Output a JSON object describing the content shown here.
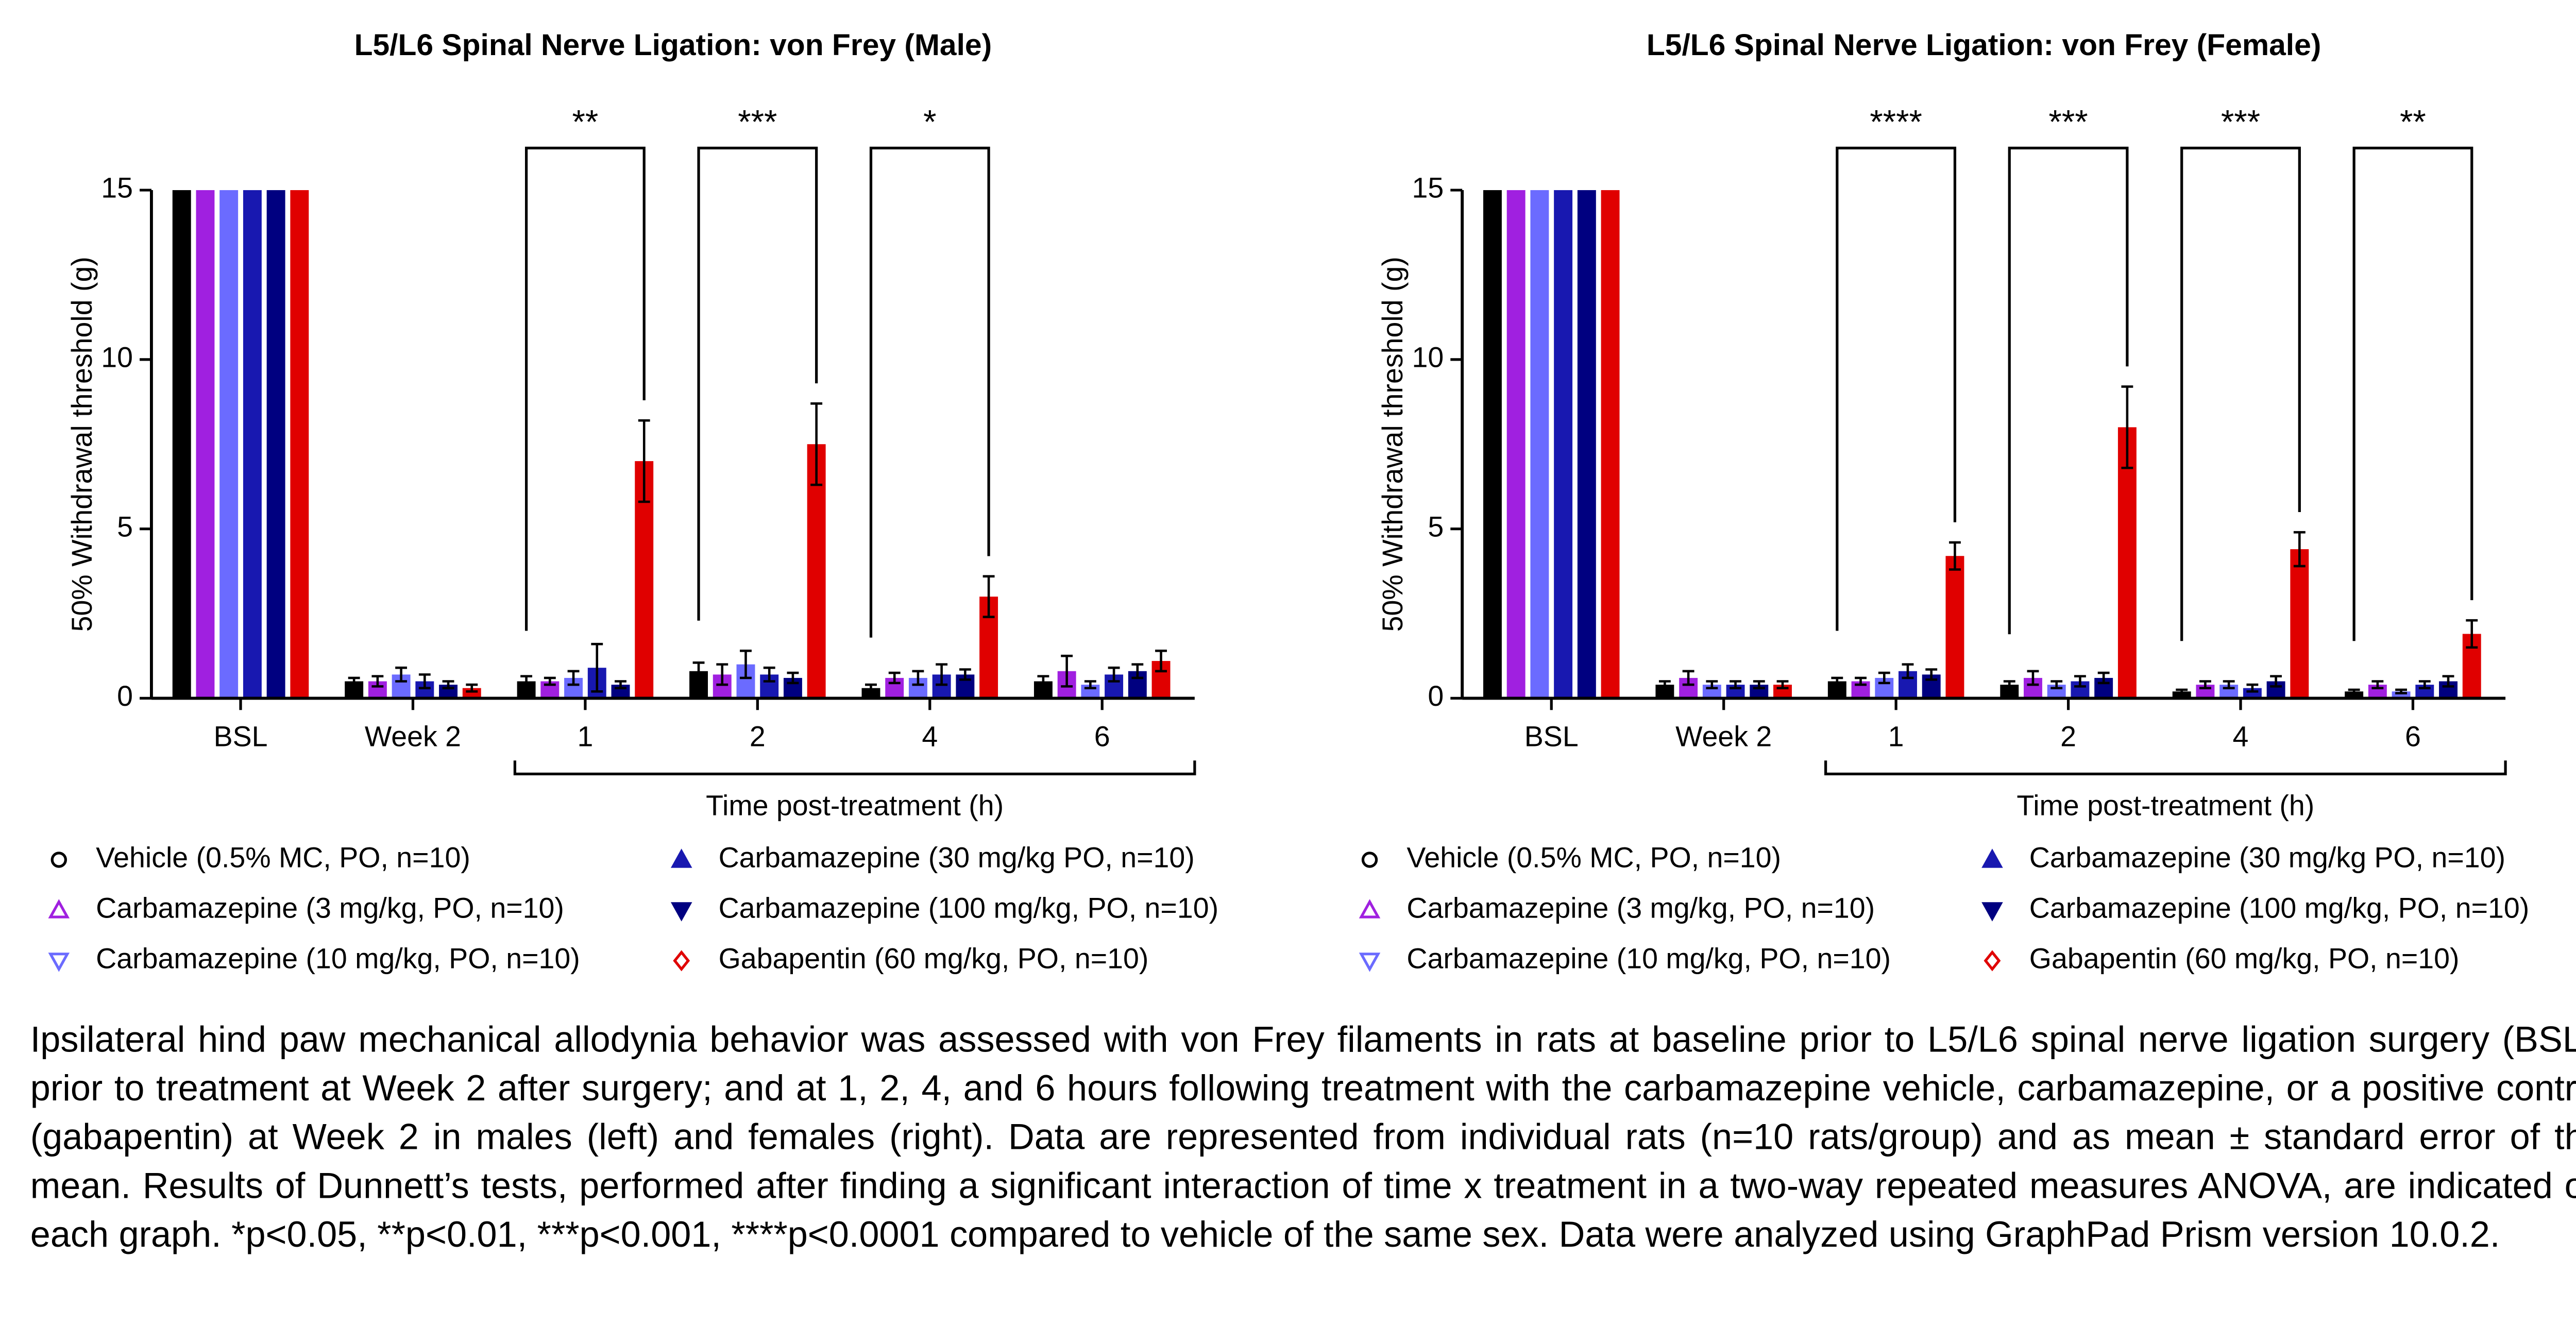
{
  "chart_data": [
    {
      "type": "bar",
      "title": "L5/L6 Spinal Nerve Ligation: von Frey (Male)",
      "y_label": "50% Withdrawal threshold (g)",
      "x_group_label": "Time post-treatment (h)",
      "categories": [
        "BSL",
        "Week 2",
        "1",
        "2",
        "4",
        "6"
      ],
      "ylim": [
        0,
        15
      ],
      "yticks": [
        0,
        5,
        10,
        15
      ],
      "significance": [
        null,
        null,
        "**",
        "***",
        "*",
        null
      ],
      "series": [
        {
          "name": "Vehicle (0.5% MC, PO, n=10)",
          "color": "#000000",
          "marker": "circle",
          "filled": false,
          "values": [
            15,
            0.5,
            0.5,
            0.8,
            0.3,
            0.5
          ],
          "errors": [
            0,
            0.1,
            0.15,
            0.25,
            0.1,
            0.15
          ]
        },
        {
          "name": "Carbamazepine (3 mg/kg, PO, n=10)",
          "color": "#a020e0",
          "marker": "triangle-up",
          "filled": false,
          "values": [
            15,
            0.5,
            0.5,
            0.7,
            0.6,
            0.8
          ],
          "errors": [
            0,
            0.15,
            0.1,
            0.3,
            0.15,
            0.45
          ]
        },
        {
          "name": "Carbamazepine (10 mg/kg, PO, n=10)",
          "color": "#6b6bff",
          "marker": "triangle-down",
          "filled": false,
          "values": [
            15,
            0.7,
            0.6,
            1.0,
            0.6,
            0.4
          ],
          "errors": [
            0,
            0.2,
            0.2,
            0.4,
            0.2,
            0.1
          ]
        },
        {
          "name": "Carbamazepine (30 mg/kg PO, n=10)",
          "color": "#1818b0",
          "marker": "triangle-up",
          "filled": true,
          "values": [
            15,
            0.5,
            0.9,
            0.7,
            0.7,
            0.7
          ],
          "errors": [
            0,
            0.2,
            0.7,
            0.2,
            0.3,
            0.2
          ]
        },
        {
          "name": "Carbamazepine (100 mg/kg, PO, n=10)",
          "color": "#000080",
          "marker": "triangle-down",
          "filled": true,
          "values": [
            15,
            0.4,
            0.4,
            0.6,
            0.7,
            0.8
          ],
          "errors": [
            0,
            0.1,
            0.1,
            0.15,
            0.15,
            0.2
          ]
        },
        {
          "name": "Gabapentin (60 mg/kg, PO, n=10)",
          "color": "#e00000",
          "marker": "diamond",
          "filled": false,
          "values": [
            15,
            0.3,
            7.0,
            7.5,
            3.0,
            1.1
          ],
          "errors": [
            0,
            0.1,
            1.2,
            1.2,
            0.6,
            0.3
          ]
        }
      ]
    },
    {
      "type": "bar",
      "title": "L5/L6 Spinal Nerve Ligation: von Frey (Female)",
      "y_label": "50% Withdrawal threshold (g)",
      "x_group_label": "Time post-treatment (h)",
      "categories": [
        "BSL",
        "Week 2",
        "1",
        "2",
        "4",
        "6"
      ],
      "ylim": [
        0,
        15
      ],
      "yticks": [
        0,
        5,
        10,
        15
      ],
      "significance": [
        null,
        null,
        "****",
        "***",
        "***",
        "**"
      ],
      "series": [
        {
          "name": "Vehicle (0.5% MC, PO, n=10)",
          "color": "#000000",
          "marker": "circle",
          "filled": false,
          "values": [
            15,
            0.4,
            0.5,
            0.4,
            0.2,
            0.2
          ],
          "errors": [
            0,
            0.1,
            0.1,
            0.1,
            0.05,
            0.05
          ]
        },
        {
          "name": "Carbamazepine (3 mg/kg, PO, n=10)",
          "color": "#a020e0",
          "marker": "triangle-up",
          "filled": false,
          "values": [
            15,
            0.6,
            0.5,
            0.6,
            0.4,
            0.4
          ],
          "errors": [
            0,
            0.2,
            0.1,
            0.2,
            0.1,
            0.1
          ]
        },
        {
          "name": "Carbamazepine (10 mg/kg, PO, n=10)",
          "color": "#6b6bff",
          "marker": "triangle-down",
          "filled": false,
          "values": [
            15,
            0.4,
            0.6,
            0.4,
            0.4,
            0.2
          ],
          "errors": [
            0,
            0.1,
            0.15,
            0.1,
            0.1,
            0.05
          ]
        },
        {
          "name": "Carbamazepine (30 mg/kg PO, n=10)",
          "color": "#1818b0",
          "marker": "triangle-up",
          "filled": true,
          "values": [
            15,
            0.4,
            0.8,
            0.5,
            0.3,
            0.4
          ],
          "errors": [
            0,
            0.1,
            0.2,
            0.15,
            0.1,
            0.1
          ]
        },
        {
          "name": "Carbamazepine (100 mg/kg, PO, n=10)",
          "color": "#000080",
          "marker": "triangle-down",
          "filled": true,
          "values": [
            15,
            0.4,
            0.7,
            0.6,
            0.5,
            0.5
          ],
          "errors": [
            0,
            0.1,
            0.15,
            0.15,
            0.15,
            0.15
          ]
        },
        {
          "name": "Gabapentin (60 mg/kg, PO, n=10)",
          "color": "#e00000",
          "marker": "diamond",
          "filled": false,
          "values": [
            15,
            0.4,
            4.2,
            8.0,
            4.4,
            1.9
          ],
          "errors": [
            0,
            0.1,
            0.4,
            1.2,
            0.5,
            0.4
          ]
        }
      ]
    }
  ],
  "caption": "Ipsilateral hind paw mechanical allodynia behavior was assessed with von Frey filaments in rats at baseline prior to L5/L6 spinal nerve ligation surgery (BSL); prior to treatment at Week 2 after surgery; and at 1, 2, 4, and 6 hours following treatment with the carbamazepine vehicle, carbamazepine, or a positive control (gabapentin) at Week 2 in males (left) and females (right). Data are represented from individual rats (n=10 rats/group) and as mean ± standard error of the mean. Results of Dunnett’s tests, performed after finding a significant interaction of time x treatment in a two-way repeated measures ANOVA, are indicated on each graph. *p<0.05, **p<0.01, ***p<0.001, ****p<0.0001 compared to vehicle of the same sex. Data were analyzed using GraphPad Prism version 10.0.2."
}
